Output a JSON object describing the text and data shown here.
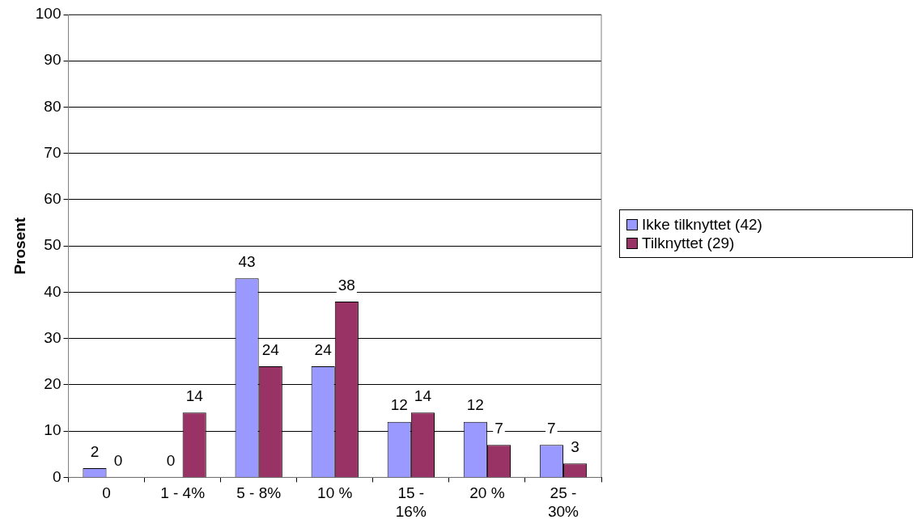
{
  "chart_data": {
    "type": "bar",
    "ylabel": "Prosent",
    "categories": [
      "0",
      "1 - 4%",
      "5 - 8%",
      "10 %",
      "15 - 16%",
      "20 %",
      "25 - 30%"
    ],
    "series": [
      {
        "name": "Ikke tilknyttet (42)",
        "color": "#9999ff",
        "values": [
          2,
          0,
          43,
          24,
          12,
          12,
          7
        ]
      },
      {
        "name": "Tilknyttet (29)",
        "color": "#993366",
        "values": [
          0,
          14,
          24,
          38,
          14,
          7,
          3
        ]
      }
    ],
    "ylim": [
      0,
      100
    ],
    "yticks": [
      0,
      10,
      20,
      30,
      40,
      50,
      60,
      70,
      80,
      90,
      100
    ],
    "grid": "y",
    "legend": "right",
    "data_labels": true
  }
}
